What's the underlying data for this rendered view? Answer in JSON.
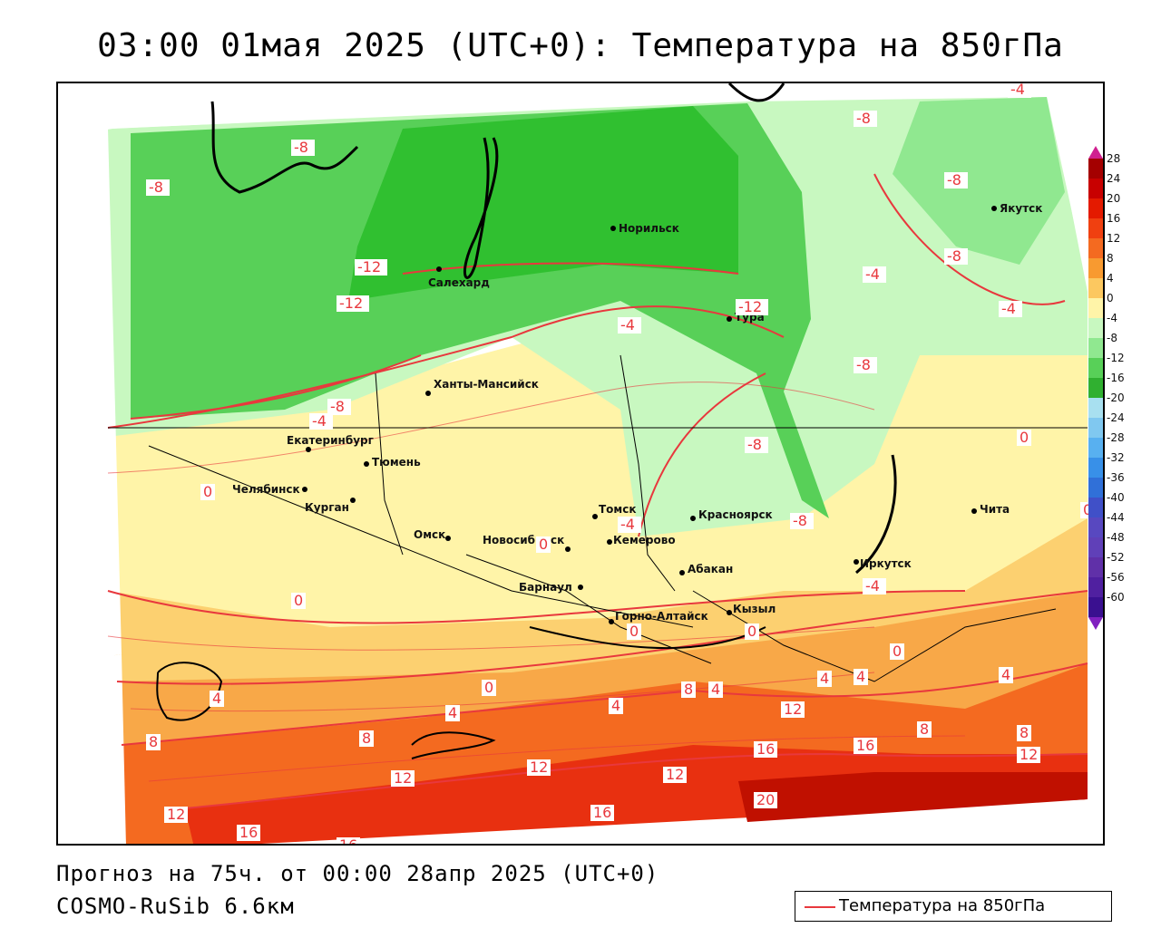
{
  "header": {
    "title": "03:00 01мая 2025 (UTC+0): Температура на 850гПа"
  },
  "footer": {
    "forecast": "Прогноз на 75ч. от 00:00 28апр 2025 (UTC+0)",
    "model": "COSMO-RuSib 6.6км"
  },
  "legend": {
    "label": "Температура на 850гПа",
    "line_color": "#e8383d"
  },
  "colorbar": {
    "ticks": [
      "28",
      "24",
      "20",
      "16",
      "12",
      "8",
      "4",
      "0",
      "-4",
      "-8",
      "-12",
      "-16",
      "-20",
      "-24",
      "-28",
      "-32",
      "-36",
      "-40",
      "-44",
      "-48",
      "-52",
      "-56",
      "-60"
    ],
    "colors": [
      "#a40000",
      "#c80000",
      "#e41a00",
      "#f04010",
      "#f46a20",
      "#f89a30",
      "#fcc860",
      "#fff4a8",
      "#c8f8c0",
      "#90e890",
      "#58d058",
      "#30b030",
      "#a8e0f0",
      "#80c8f0",
      "#58b0f0",
      "#3890e8",
      "#3070d8",
      "#4050c8",
      "#5848c0",
      "#6040b8",
      "#6030a8",
      "#5020a0",
      "#3a1090"
    ],
    "arrow_top_color": "#d02090",
    "arrow_bottom_color": "#8020c0"
  },
  "cities": [
    {
      "name": "Норильск"
    },
    {
      "name": "Якутск"
    },
    {
      "name": "Салехард"
    },
    {
      "name": "Тура"
    },
    {
      "name": "Ханты-Мансийск"
    },
    {
      "name": "Екатеринбург"
    },
    {
      "name": "Тюмень"
    },
    {
      "name": "Челябинск"
    },
    {
      "name": "Курган"
    },
    {
      "name": "Омск"
    },
    {
      "name": "Томск"
    },
    {
      "name": "Красноярск"
    },
    {
      "name": "Новосибирск"
    },
    {
      "name": "Кемерово"
    },
    {
      "name": "Абакан"
    },
    {
      "name": "Барнаул"
    },
    {
      "name": "Горно-Алтайск"
    },
    {
      "name": "Кызыл"
    },
    {
      "name": "Иркутск"
    },
    {
      "name": "Чита"
    }
  ],
  "isolines": [
    "-4",
    "-8",
    "-8",
    "-8",
    "-12",
    "-12",
    "-8",
    "-8",
    "-12",
    "-4",
    "-8",
    "-4",
    "-4",
    "-4",
    "-8",
    "-8",
    "-4",
    "0",
    "-8",
    "0",
    "0",
    "0",
    "0",
    "0",
    "0",
    "0",
    "0",
    "-4",
    "4",
    "4",
    "4",
    "4",
    "4",
    "4",
    "4",
    "8",
    "8",
    "8",
    "8",
    "8",
    "12",
    "12",
    "12",
    "12",
    "12",
    "12",
    "16",
    "16",
    "16",
    "16",
    "20",
    "16"
  ],
  "colors": {
    "isoline": "#e8383d",
    "zone_cold3": "#30c030",
    "zone_cold2": "#58d058",
    "zone_cold1": "#c8f8c0",
    "zone_0": "#fff4a8",
    "zone_4": "#fcd070",
    "zone_8": "#f8a848",
    "zone_12": "#f46a20",
    "zone_16": "#e83010",
    "zone_20": "#c01000"
  }
}
